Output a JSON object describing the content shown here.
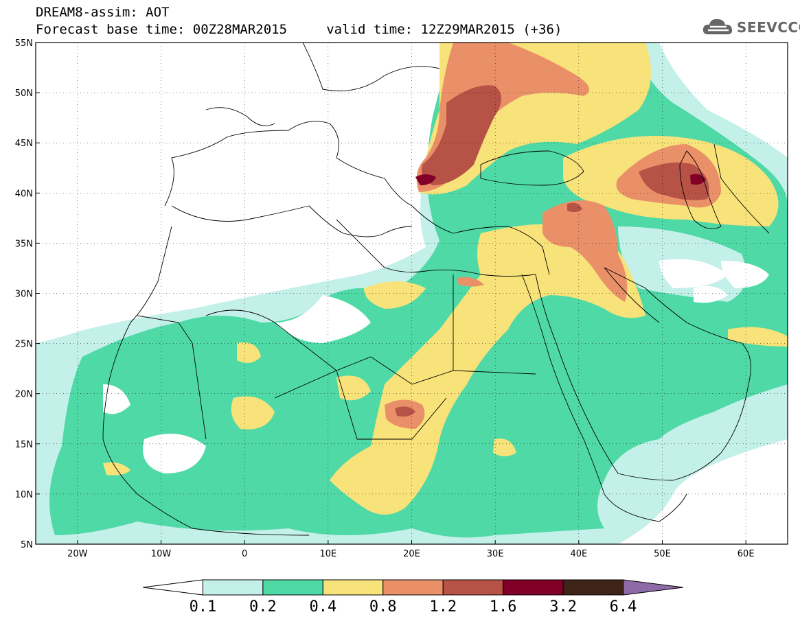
{
  "title": {
    "line1": "DREAM8-assim: AOT",
    "line2": "Forecast base time: 00Z28MAR2015     valid time: 12Z29MAR2015 (+36)"
  },
  "logo": {
    "text": "SEEVCCC",
    "icon": "cloud-icon"
  },
  "map": {
    "lon_range": [
      -25,
      65
    ],
    "lat_range": [
      5,
      55
    ],
    "lon_ticks": [
      {
        "v": -20,
        "label": "20W"
      },
      {
        "v": -10,
        "label": "10W"
      },
      {
        "v": 0,
        "label": "0"
      },
      {
        "v": 10,
        "label": "10E"
      },
      {
        "v": 20,
        "label": "20E"
      },
      {
        "v": 30,
        "label": "30E"
      },
      {
        "v": 40,
        "label": "40E"
      },
      {
        "v": 50,
        "label": "50E"
      },
      {
        "v": 60,
        "label": "60E"
      }
    ],
    "lat_ticks": [
      {
        "v": 55,
        "label": "55N"
      },
      {
        "v": 50,
        "label": "50N"
      },
      {
        "v": 45,
        "label": "45N"
      },
      {
        "v": 40,
        "label": "40N"
      },
      {
        "v": 35,
        "label": "35N"
      },
      {
        "v": 30,
        "label": "30N"
      },
      {
        "v": 25,
        "label": "25N"
      },
      {
        "v": 20,
        "label": "20N"
      },
      {
        "v": 15,
        "label": "15N"
      },
      {
        "v": 10,
        "label": "10N"
      },
      {
        "v": 5,
        "label": "5N"
      }
    ]
  },
  "colorbar": {
    "labels": [
      "0.1",
      "0.2",
      "0.4",
      "0.8",
      "1.2",
      "1.6",
      "3.2",
      "6.4"
    ],
    "colors": [
      "#ffffff",
      "#c4f0ea",
      "#4fd9a6",
      "#f8e27a",
      "#ea9068",
      "#b65246",
      "#820028",
      "#3e2418",
      "#8e6aa8"
    ]
  }
}
